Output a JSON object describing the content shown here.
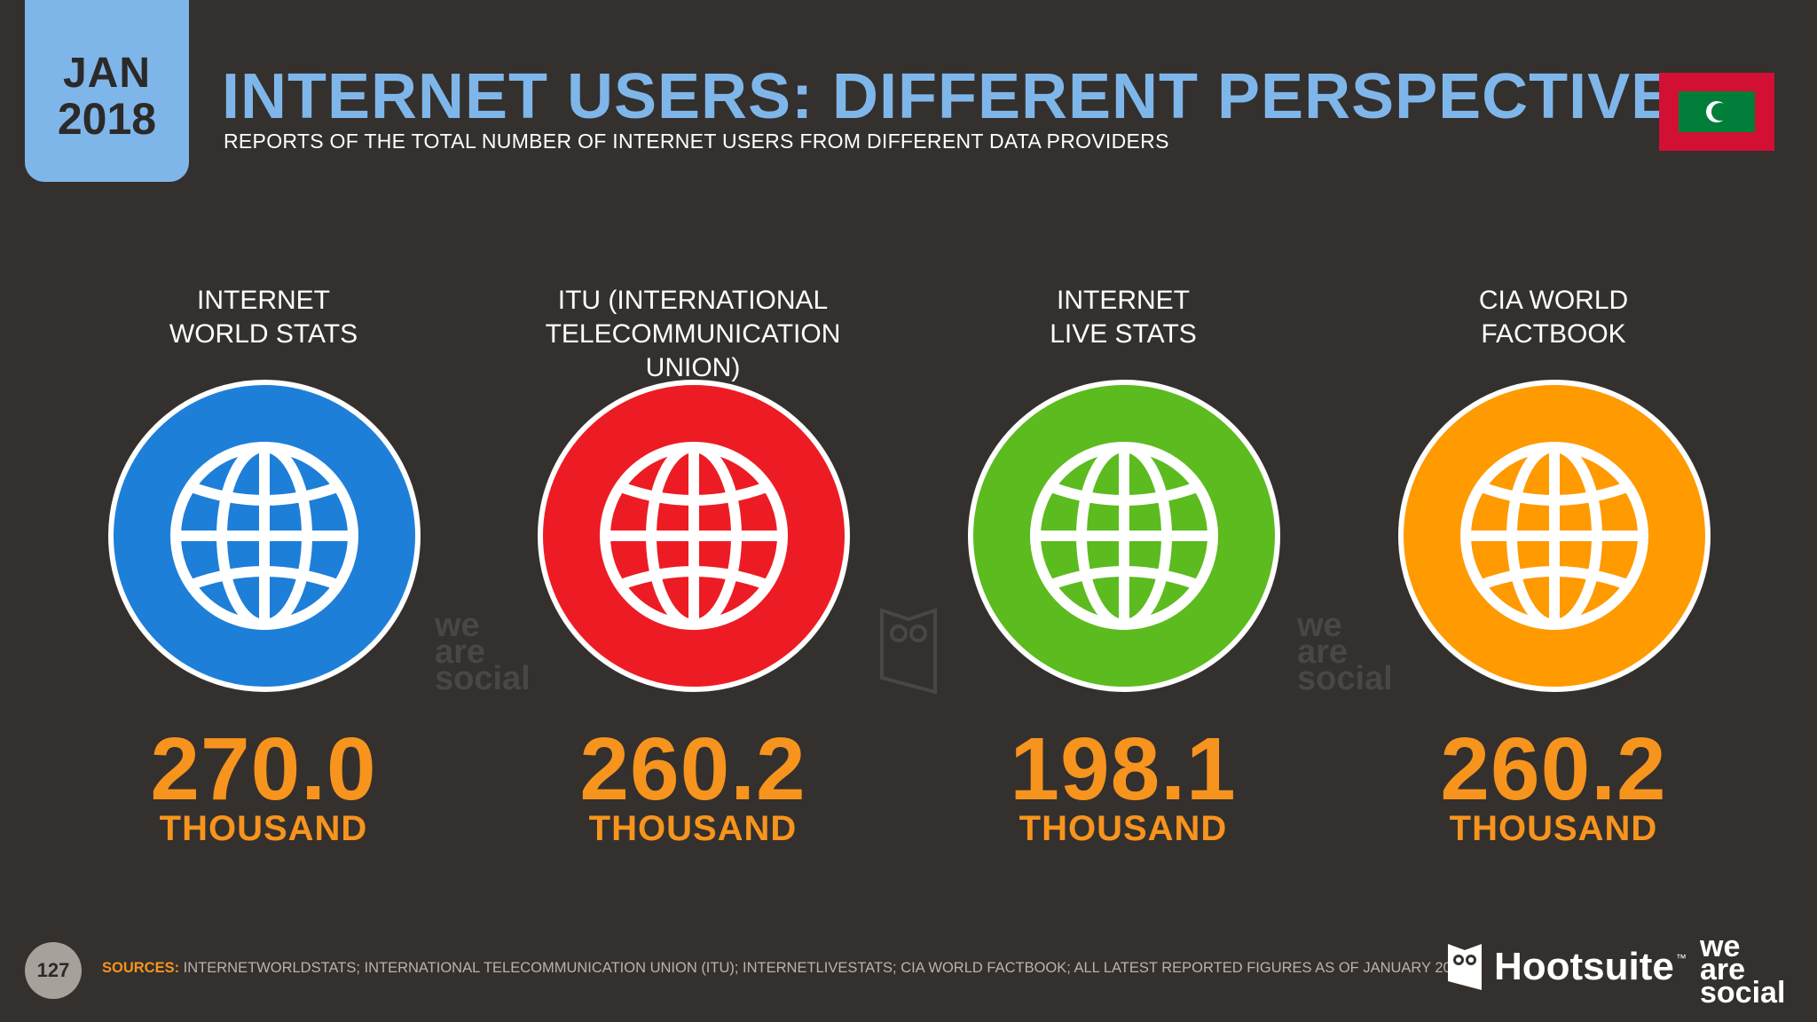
{
  "header": {
    "month": "JAN",
    "year": "2018",
    "title": "INTERNET USERS: DIFFERENT PERSPECTIVES",
    "subtitle": "REPORTS OF THE TOTAL NUMBER OF INTERNET USERS FROM DIFFERENT DATA PROVIDERS"
  },
  "flag": {
    "icon": "maldives-flag-icon",
    "colors": {
      "red": "#d21034",
      "green": "#007e3a"
    }
  },
  "providers": [
    {
      "label": "INTERNET\nWORLD STATS",
      "value": "270.0",
      "unit": "THOUSAND",
      "color": "#1e7fd8",
      "icon": "globe-icon"
    },
    {
      "label": "ITU (INTERNATIONAL\nTELECOMMUNICATION UNION)",
      "value": "260.2",
      "unit": "THOUSAND",
      "color": "#ed1c24",
      "icon": "globe-icon"
    },
    {
      "label": "INTERNET\nLIVE STATS",
      "value": "198.1",
      "unit": "THOUSAND",
      "color": "#5cbb1e",
      "icon": "globe-icon"
    },
    {
      "label": "CIA WORLD\nFACTBOOK",
      "value": "260.2",
      "unit": "THOUSAND",
      "color": "#ff9a00",
      "icon": "globe-icon"
    }
  ],
  "watermarks": {
    "we_are_social": [
      "we",
      "are",
      "social"
    ]
  },
  "footer": {
    "page_number": "127",
    "sources_label": "SOURCES:",
    "sources_text": " INTERNETWORLDSTATS; INTERNATIONAL TELECOMMUNICATION UNION (ITU); INTERNETLIVESTATS; CIA WORLD FACTBOOK; ALL LATEST REPORTED FIGURES AS OF JANUARY 2018.",
    "hootsuite": "Hootsuite",
    "tm": "™",
    "was_logo": [
      "we",
      "are",
      "social"
    ]
  },
  "colors": {
    "background": "#34302e",
    "accent_blue": "#7fb6ea",
    "accent_orange": "#f7941d"
  }
}
